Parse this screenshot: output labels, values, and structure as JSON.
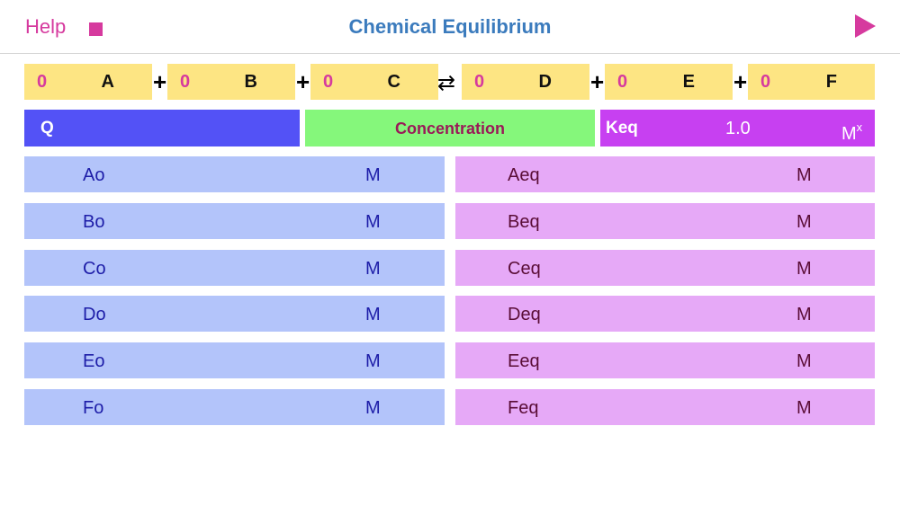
{
  "header": {
    "help_label": "Help",
    "title": "Chemical Equilibrium",
    "stop_icon": "stop-icon",
    "play_icon": "play-icon"
  },
  "equation": {
    "reactants": [
      {
        "coef": "0",
        "species": "A"
      },
      {
        "coef": "0",
        "species": "B"
      },
      {
        "coef": "0",
        "species": "C"
      }
    ],
    "products": [
      {
        "coef": "0",
        "species": "D"
      },
      {
        "coef": "0",
        "species": "E"
      },
      {
        "coef": "0",
        "species": "F"
      }
    ],
    "plus": "+",
    "arrow": "⇄"
  },
  "bars": {
    "q_label": "Q",
    "concentration_label": "Concentration",
    "keq_label": "Keq",
    "keq_value": "1.0",
    "keq_unit": "M",
    "keq_unit_sup": "x"
  },
  "initial_rows": [
    {
      "label": "Ao",
      "unit": "M"
    },
    {
      "label": "Bo",
      "unit": "M"
    },
    {
      "label": "Co",
      "unit": "M"
    },
    {
      "label": "Do",
      "unit": "M"
    },
    {
      "label": "Eo",
      "unit": "M"
    },
    {
      "label": "Fo",
      "unit": "M"
    }
  ],
  "equilibrium_rows": [
    {
      "label": "Aeq",
      "unit": "M"
    },
    {
      "label": "Beq",
      "unit": "M"
    },
    {
      "label": "Ceq",
      "unit": "M"
    },
    {
      "label": "Deq",
      "unit": "M"
    },
    {
      "label": "Eeq",
      "unit": "M"
    },
    {
      "label": "Feq",
      "unit": "M"
    }
  ],
  "colors": {
    "accent": "#d63a9e",
    "title": "#3b7bbd",
    "coef_box": "#fde583",
    "q_bar": "#5352f6",
    "concentration_bar": "#85f77b",
    "keq_bar": "#c740f1",
    "initial_row": "#b3c4fa",
    "equilibrium_row": "#e6a9f7"
  }
}
